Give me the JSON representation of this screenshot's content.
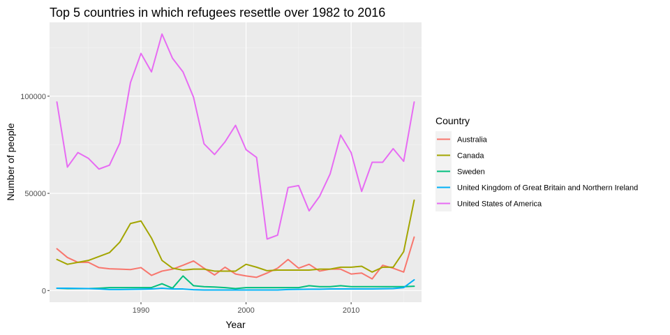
{
  "chart_data": {
    "type": "line",
    "title": "Top 5 countries in which refugees resettle over 1982 to 2016",
    "xlabel": "Year",
    "ylabel": "Number of people",
    "xlim": [
      1981.3,
      2016.7
    ],
    "ylim": [
      -6000,
      138000
    ],
    "xticks": [
      1990,
      2000,
      2010
    ],
    "xtick_labels": [
      "1990",
      "2000",
      "2010"
    ],
    "xminor": [
      1985,
      1995,
      2005,
      2015
    ],
    "yticks": [
      0,
      50000,
      100000
    ],
    "ytick_labels": [
      "0",
      "50000",
      "100000"
    ],
    "yminor": [
      25000,
      75000,
      125000
    ],
    "grid": true,
    "legend_title": "Country",
    "legend_position": "right",
    "x": [
      1982,
      1983,
      1984,
      1985,
      1986,
      1987,
      1988,
      1989,
      1990,
      1991,
      1992,
      1993,
      1994,
      1995,
      1996,
      1997,
      1998,
      1999,
      2000,
      2001,
      2002,
      2003,
      2004,
      2005,
      2006,
      2007,
      2008,
      2009,
      2010,
      2011,
      2012,
      2013,
      2014,
      2015,
      2016
    ],
    "series": [
      {
        "name": "Australia",
        "color": "#F8766D",
        "values": [
          21500,
          17000,
          14500,
          14500,
          11800,
          11200,
          11000,
          10800,
          11800,
          7800,
          10000,
          11000,
          13000,
          15200,
          11500,
          8000,
          12000,
          8500,
          7500,
          6800,
          9000,
          11500,
          16000,
          11500,
          13500,
          10000,
          11000,
          11000,
          8500,
          9000,
          6000,
          13000,
          11500,
          9500,
          27500
        ]
      },
      {
        "name": "Canada",
        "color": "#A3A500",
        "values": [
          16000,
          13500,
          14500,
          15500,
          17500,
          19500,
          25000,
          34500,
          35800,
          27000,
          15500,
          11500,
          10500,
          11000,
          11000,
          10000,
          10000,
          10000,
          13500,
          12000,
          10200,
          10500,
          10500,
          10500,
          10500,
          11000,
          11000,
          12000,
          12000,
          12500,
          9500,
          12000,
          12000,
          20000,
          46500
        ]
      },
      {
        "name": "Sweden",
        "color": "#00BF7D",
        "values": [
          1200,
          1000,
          1000,
          1000,
          1200,
          1500,
          1500,
          1500,
          1500,
          1500,
          3500,
          1200,
          7500,
          2500,
          2000,
          1800,
          1500,
          1000,
          1500,
          1500,
          1500,
          1500,
          1500,
          1500,
          2500,
          2000,
          2000,
          2500,
          2000,
          2000,
          2000,
          2000,
          2000,
          2000,
          2200
        ]
      },
      {
        "name": "United Kingdom of Great Britain and Northern Ireland",
        "color": "#00B0F6",
        "values": [
          1200,
          1200,
          1100,
          1000,
          800,
          500,
          500,
          600,
          700,
          800,
          1200,
          800,
          800,
          400,
          300,
          300,
          300,
          300,
          300,
          300,
          300,
          300,
          500,
          600,
          700,
          700,
          800,
          800,
          800,
          800,
          800,
          900,
          1000,
          1500,
          5500
        ]
      },
      {
        "name": "United States of America",
        "color": "#E76BF3",
        "values": [
          97000,
          63500,
          71000,
          68000,
          62500,
          64500,
          76000,
          107000,
          122000,
          112500,
          132000,
          119500,
          112500,
          99500,
          75500,
          70000,
          76500,
          85000,
          72500,
          68500,
          26500,
          28500,
          53000,
          54000,
          41000,
          48500,
          60000,
          80000,
          71000,
          51000,
          66000,
          66000,
          73000,
          66500,
          97000
        ]
      }
    ]
  }
}
